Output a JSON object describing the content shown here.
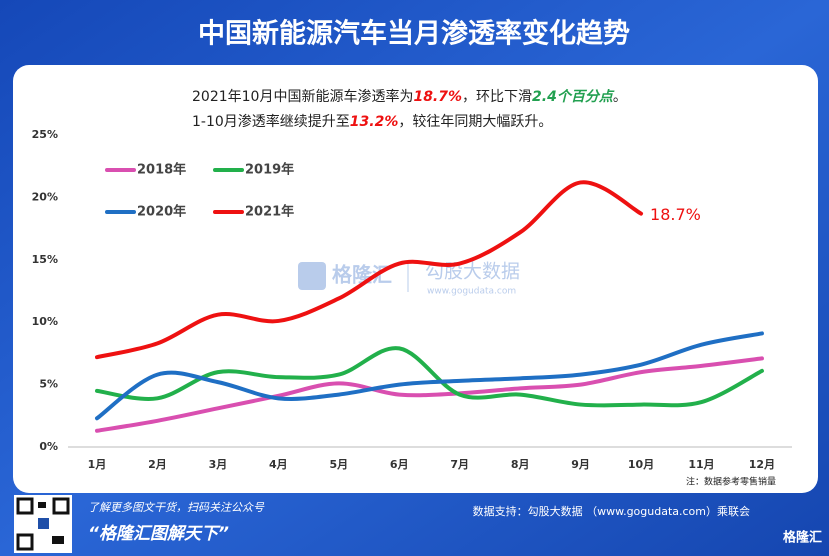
{
  "chart_data": {
    "type": "line",
    "title": "中国新能源汽车当月渗透率变化趋势",
    "subtitle_lines": [
      [
        "2021年10月中国新能源车渗透率为",
        "18.7%",
        "，环比下滑",
        "2.4个百分点",
        "。"
      ],
      [
        "1-10月渗透率继续提升至",
        "13.2%",
        "，较往年同期大幅跃升。"
      ]
    ],
    "categories": [
      "1月",
      "2月",
      "3月",
      "4月",
      "5月",
      "6月",
      "7月",
      "8月",
      "9月",
      "10月",
      "11月",
      "12月"
    ],
    "series": [
      {
        "name": "2018年",
        "color": "#d94fb0",
        "values": [
          1.3,
          2.1,
          3.1,
          4.1,
          5.1,
          4.2,
          4.3,
          4.7,
          5.0,
          6.0,
          6.5,
          7.1
        ]
      },
      {
        "name": "2019年",
        "color": "#22b04b",
        "values": [
          4.5,
          3.9,
          6.0,
          5.6,
          5.8,
          7.9,
          4.2,
          4.2,
          3.4,
          3.4,
          3.6,
          6.1
        ]
      },
      {
        "name": "2020年",
        "color": "#1f6fc4",
        "values": [
          2.3,
          5.8,
          5.2,
          3.9,
          4.2,
          5.0,
          5.3,
          5.5,
          5.8,
          6.6,
          8.2,
          9.1
        ]
      },
      {
        "name": "2021年",
        "color": "#ee1111",
        "values": [
          7.2,
          8.3,
          10.6,
          10.1,
          11.9,
          14.7,
          14.7,
          17.2,
          21.2,
          18.7,
          null,
          null
        ],
        "value_labels": [
          null,
          null,
          null,
          null,
          null,
          null,
          null,
          null,
          null,
          "18.7%",
          null,
          null
        ]
      }
    ],
    "ylim": [
      0,
      25
    ],
    "yticks": [
      {
        "value": 0,
        "label": "0%"
      },
      {
        "value": 5,
        "label": "5%"
      },
      {
        "value": 10,
        "label": "10%"
      },
      {
        "value": 15,
        "label": "15%"
      },
      {
        "value": 20,
        "label": "20%"
      },
      {
        "value": 25,
        "label": "25%"
      }
    ],
    "grid": false,
    "note": "注：数据参考零售销量",
    "watermark": [
      "格隆汇",
      "勾股大数据",
      "www.gogudata.com"
    ],
    "footer": {
      "promo": "了解更多图文干货，扫码关注公众号",
      "slogan": "“格隆汇图解天下”",
      "source": "数据支持：勾股大数据 （www.gogudata.com）乘联会",
      "logo": "格隆汇"
    }
  }
}
